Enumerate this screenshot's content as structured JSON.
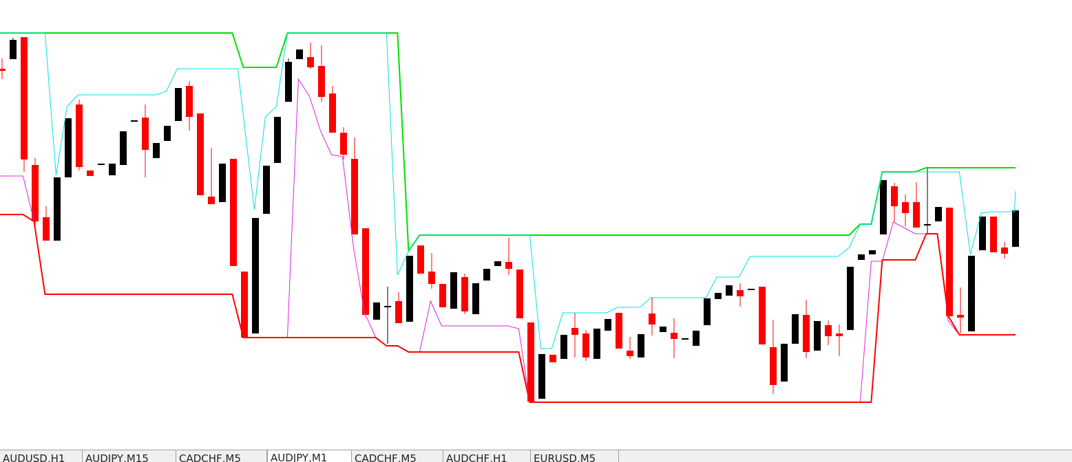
{
  "chart_data": {
    "type": "candlestick",
    "ylim": [
      0,
      600
    ],
    "up_color": "#000000",
    "down_color": "#ff0000",
    "ohlc": [
      [
        500,
        515,
        485,
        497
      ],
      [
        514,
        545,
        514,
        542
      ],
      [
        546,
        546,
        350,
        368
      ],
      [
        360,
        370,
        270,
        278
      ],
      [
        284,
        300,
        250,
        250
      ],
      [
        250,
        342,
        250,
        342
      ],
      [
        342,
        428,
        342,
        428
      ],
      [
        448,
        455,
        352,
        357
      ],
      [
        352,
        352,
        344,
        344
      ],
      [
        361,
        361,
        361,
        361
      ],
      [
        345,
        362,
        345,
        362
      ],
      [
        360,
        409,
        360,
        409
      ],
      [
        424,
        424,
        424,
        424
      ],
      [
        429,
        448,
        342,
        382
      ],
      [
        370,
        392,
        370,
        392
      ],
      [
        395,
        417,
        395,
        417
      ],
      [
        424,
        472,
        424,
        472
      ],
      [
        475,
        482,
        410,
        430
      ],
      [
        435,
        435,
        316,
        316
      ],
      [
        314,
        385,
        303,
        303
      ],
      [
        306,
        362,
        306,
        362
      ],
      [
        369,
        369,
        213,
        213
      ],
      [
        205,
        205,
        109,
        109
      ],
      [
        115,
        283,
        115,
        283
      ],
      [
        289,
        359,
        289,
        359
      ],
      [
        363,
        430,
        363,
        430
      ],
      [
        452,
        515,
        452,
        510
      ],
      [
        514,
        528,
        514,
        528
      ],
      [
        517,
        538,
        500,
        502
      ],
      [
        504,
        534,
        452,
        459
      ],
      [
        464,
        475,
        407,
        407
      ],
      [
        407,
        415,
        368,
        375
      ],
      [
        369,
        400,
        259,
        259
      ],
      [
        268,
        268,
        140,
        142
      ],
      [
        135,
        160,
        135,
        160
      ],
      [
        154,
        183,
        100,
        154
      ],
      [
        162,
        175,
        130,
        130
      ],
      [
        132,
        228,
        132,
        228
      ],
      [
        243,
        243,
        202,
        202
      ],
      [
        205,
        232,
        180,
        187
      ],
      [
        187,
        187,
        153,
        153
      ],
      [
        151,
        204,
        151,
        204
      ],
      [
        197,
        202,
        143,
        147
      ],
      [
        143,
        188,
        143,
        188
      ],
      [
        192,
        209,
        192,
        209
      ],
      [
        213,
        220,
        213,
        220
      ],
      [
        219,
        254,
        200,
        209
      ],
      [
        208,
        208,
        137,
        137
      ],
      [
        131,
        131,
        16,
        16
      ],
      [
        20,
        85,
        20,
        85
      ],
      [
        84,
        84,
        73,
        73
      ],
      [
        78,
        113,
        78,
        113
      ],
      [
        123,
        145,
        80,
        113
      ],
      [
        115,
        120,
        75,
        80
      ],
      [
        78,
        122,
        78,
        122
      ],
      [
        119,
        136,
        119,
        136
      ],
      [
        145,
        145,
        93,
        93
      ],
      [
        90,
        110,
        78,
        82
      ],
      [
        80,
        114,
        80,
        114
      ],
      [
        144,
        168,
        112,
        128
      ],
      [
        117,
        125,
        117,
        125
      ],
      [
        116,
        137,
        79,
        107
      ],
      [
        107,
        107,
        107,
        107
      ],
      [
        97,
        119,
        97,
        119
      ],
      [
        127,
        166,
        127,
        166
      ],
      [
        165,
        174,
        165,
        174
      ],
      [
        170,
        185,
        170,
        185
      ],
      [
        178,
        188,
        154,
        169
      ],
      [
        179,
        179,
        179,
        179
      ],
      [
        183,
        183,
        99,
        99
      ],
      [
        95,
        135,
        27,
        40
      ],
      [
        45,
        100,
        45,
        100
      ],
      [
        100,
        143,
        100,
        143
      ],
      [
        142,
        164,
        79,
        88
      ],
      [
        90,
        133,
        90,
        133
      ],
      [
        127,
        134,
        98,
        111
      ],
      [
        115,
        128,
        82,
        111
      ],
      [
        120,
        212,
        120,
        212
      ],
      [
        222,
        230,
        222,
        230
      ],
      [
        230,
        236,
        230,
        236
      ],
      [
        259,
        338,
        259,
        338
      ],
      [
        329,
        334,
        277,
        300
      ],
      [
        306,
        317,
        271,
        290
      ],
      [
        306,
        335,
        269,
        269
      ],
      [
        273,
        355,
        260,
        273
      ],
      [
        278,
        299,
        278,
        299
      ],
      [
        298,
        298,
        140,
        140
      ],
      [
        142,
        182,
        115,
        138
      ],
      [
        118,
        228,
        118,
        228
      ],
      [
        236,
        285,
        236,
        285
      ],
      [
        285,
        285,
        233,
        233
      ],
      [
        240,
        248,
        224,
        231
      ],
      [
        241,
        294,
        241,
        294
      ]
    ],
    "lines": [
      {
        "color": "#00e000",
        "x": [
          -0.2,
          20.9,
          21.9,
          24.9,
          25.9,
          35.9,
          36.9,
          37.9,
          76.9,
          77.9,
          78.9,
          79.9,
          82.9,
          83.9,
          92
        ],
        "values": [
          552,
          552,
          502,
          502,
          552,
          552,
          235,
          258,
          258,
          274,
          274,
          350,
          350,
          356,
          356
        ]
      },
      {
        "color": "#00e0e0",
        "x": [
          -0.2,
          3.9,
          4.9,
          5.9,
          6.9,
          13.9,
          14.9,
          15.9,
          21.4,
          22.9,
          23.9,
          24.9,
          25.9,
          34.9,
          35.9,
          36.9,
          37.9,
          47.9,
          48.9,
          49.9,
          50.9,
          54.9,
          55.9,
          57.9,
          58.9,
          63.9,
          64.9,
          66.9,
          67.9,
          75.9,
          76.9,
          77.9,
          78.9,
          79.9,
          86.9,
          87.9,
          88.9,
          89.9,
          91.9,
          92
        ],
        "values": [
          552,
          552,
          345,
          445,
          462,
          462,
          467,
          500,
          500,
          295,
          430,
          445,
          552,
          552,
          200,
          235,
          258,
          258,
          93,
          93,
          145,
          145,
          153,
          153,
          167,
          167,
          197,
          197,
          227,
          227,
          240,
          274,
          274,
          350,
          350,
          230,
          290,
          292,
          292,
          322
        ]
      },
      {
        "color": "#e020e0",
        "x": [
          -0.2,
          1.9,
          2.9,
          3.9,
          20.9,
          21.9,
          25.9,
          26.9,
          27.9,
          28.9,
          29.9,
          30.9,
          31.9,
          32.9,
          33.9,
          34.9,
          35.9,
          36.9,
          37.9,
          38.9,
          39.9,
          45.9,
          46.9,
          47.9,
          77.9,
          78.9,
          79.9,
          80.9,
          82.9,
          84.9,
          85.9,
          86.9,
          92
        ],
        "values": [
          344,
          344,
          278,
          172,
          172,
          109,
          109,
          485,
          460,
          410,
          375,
          372,
          240,
          145,
          110,
          97,
          97,
          88,
          88,
          162,
          126,
          126,
          122,
          15,
          15,
          220,
          220,
          277,
          260,
          260,
          133,
          113,
          113
        ]
      },
      {
        "color": "#ff0000",
        "x": [
          -0.2,
          1.9,
          2.9,
          3.9,
          20.9,
          21.9,
          33.9,
          34.9,
          35.9,
          36.9,
          46.9,
          47.9,
          78.9,
          79.9,
          82.9,
          83.9,
          84.9,
          85.9,
          86.9,
          92
        ],
        "values": [
          288,
          288,
          278,
          172,
          172,
          109,
          109,
          97,
          97,
          88,
          88,
          15,
          15,
          222,
          222,
          260,
          260,
          140,
          113,
          113
        ]
      }
    ]
  },
  "tabs": {
    "items": [
      "AUDUSD,H1",
      "AUDJPY,M15",
      "CADCHF,M5",
      "AUDJPY,M1",
      "CADCHF,M5",
      "AUDCHF,H1",
      "EURUSD,M5"
    ],
    "active": 3
  }
}
